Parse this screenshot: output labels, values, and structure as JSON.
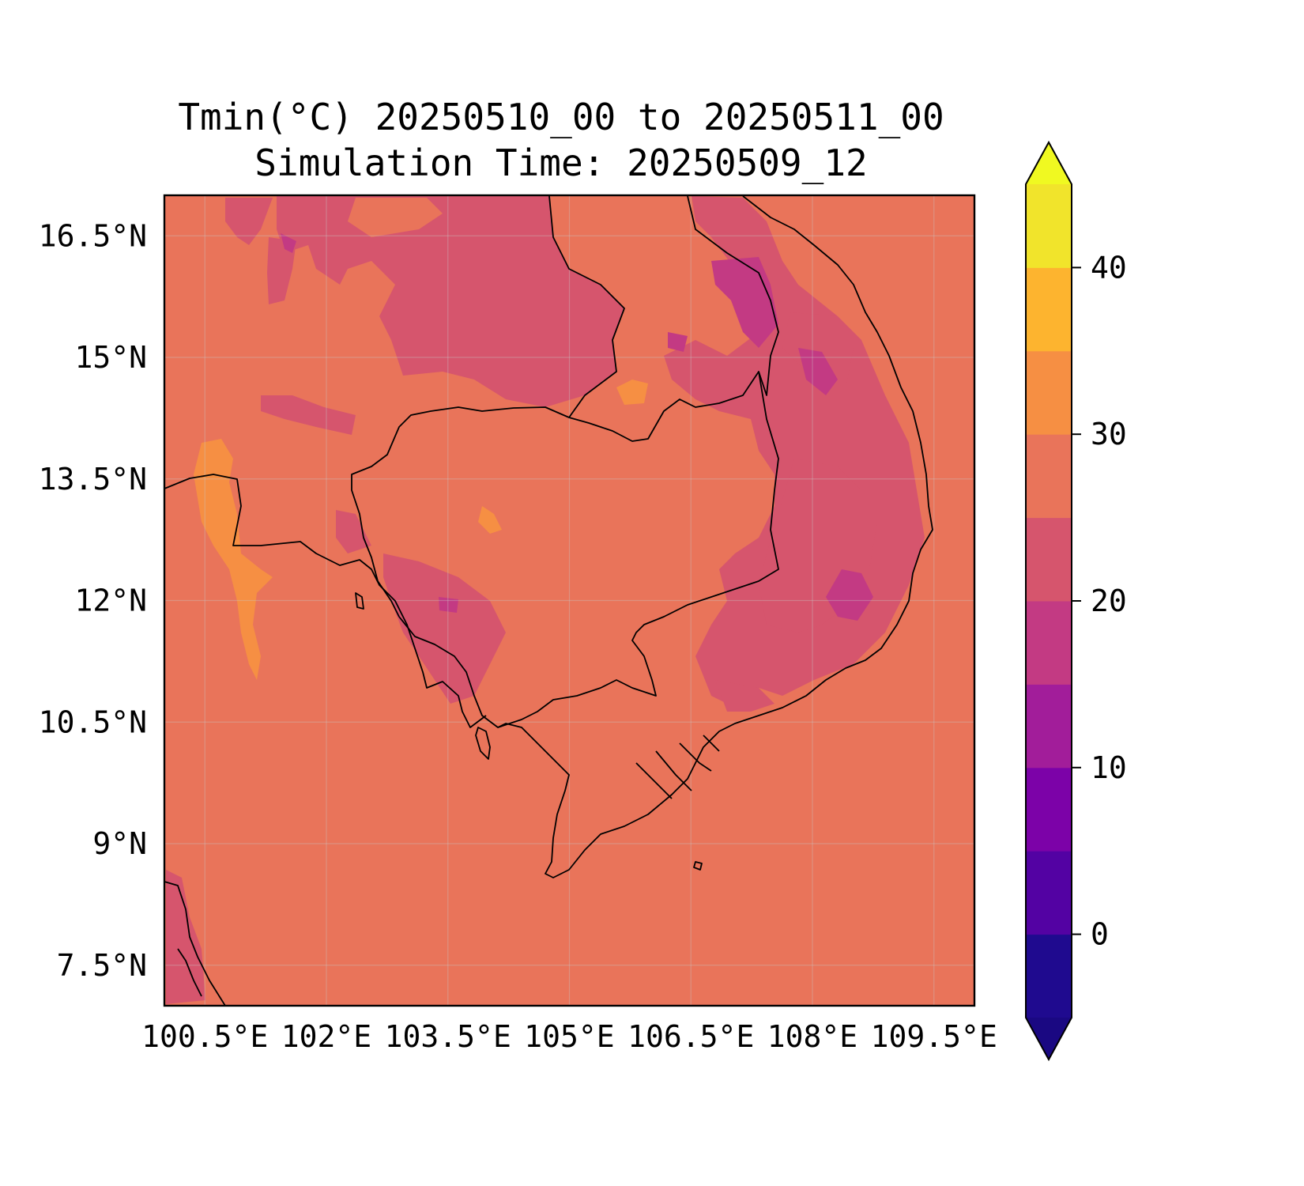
{
  "title": {
    "line1": "Tmin(°C) 20250510_00 to 20250511_00",
    "line2": "Simulation Time: 20250509_12"
  },
  "map": {
    "variable": "Tmin",
    "unit": "°C",
    "lat_range": [
      7.0,
      17.0
    ],
    "lon_range": [
      100.0,
      110.0
    ],
    "lat_ticks": [
      "16.5°N",
      "15°N",
      "13.5°N",
      "12°N",
      "10.5°N",
      "9°N",
      "7.5°N"
    ],
    "lon_ticks": [
      "100.5°E",
      "102°E",
      "103.5°E",
      "105°E",
      "106.5°E",
      "108°E",
      "109.5°E"
    ],
    "grid": true,
    "background_color": "#e9745a"
  },
  "colorbar": {
    "ticks": [
      "0",
      "10",
      "20",
      "30",
      "40"
    ],
    "tick_values": [
      0,
      10,
      20,
      30,
      40
    ],
    "levels": [
      -5,
      0,
      5,
      10,
      15,
      20,
      25,
      30,
      35,
      40
    ],
    "extend": "both",
    "colors": [
      "#1a0882",
      "#1f0a8f",
      "#5302a3",
      "#7c02a8",
      "#a21d9a",
      "#c33a83",
      "#d6556d",
      "#e9745a",
      "#f68f43",
      "#fdb42f",
      "#f1e42b",
      "#f0f921"
    ]
  }
}
